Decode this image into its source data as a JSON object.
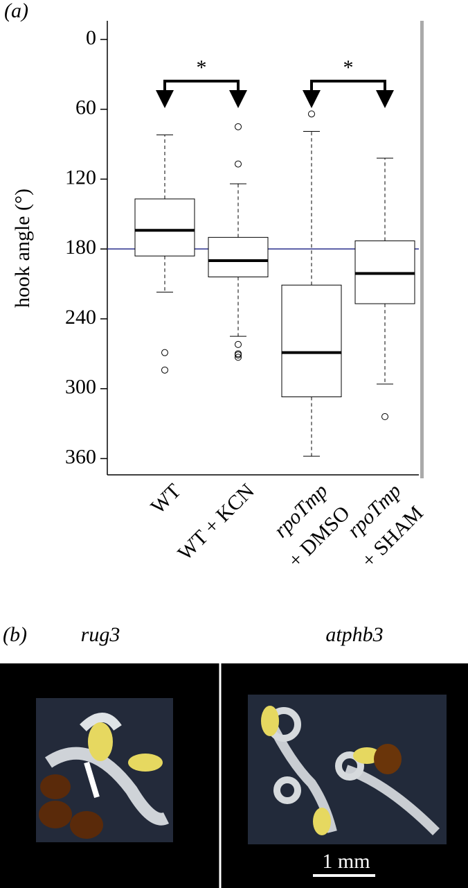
{
  "chart_data": {
    "type": "box",
    "panel_labels": [
      "(a)",
      "(b)"
    ],
    "ylabel": "hook angle (°)",
    "categories": [
      [
        "WT"
      ],
      [
        "WT + KCN"
      ],
      [
        "rpoTmp",
        "+ DMSO"
      ],
      [
        "rpoTmp",
        "+ SHAM"
      ]
    ],
    "boxes": [
      {
        "min": 82,
        "q1": 137,
        "median": 164,
        "q3": 186,
        "max": 217,
        "outliers": [
          269,
          284
        ]
      },
      {
        "min": 124,
        "q1": 170,
        "median": 190,
        "q3": 204,
        "max": 255,
        "outliers": [
          75,
          107,
          262,
          270,
          273,
          271
        ]
      },
      {
        "min": 79,
        "q1": 211,
        "median": 269,
        "q3": 307,
        "max": 358,
        "outliers": [
          64
        ]
      },
      {
        "min": 102,
        "q1": 173,
        "median": 201,
        "q3": 227,
        "max": 296,
        "outliers": [
          324
        ]
      }
    ],
    "annotations": [
      "*",
      "*"
    ],
    "reference_line": 180,
    "reference_color": "#2a2f8c",
    "ylim": [
      -16,
      374
    ],
    "y_inverted": true,
    "yticks": [
      0,
      60,
      120,
      180,
      240,
      300,
      360
    ],
    "photos": {
      "labels": [
        "rug3",
        "atphb3"
      ],
      "scale_bar": "1 mm"
    }
  }
}
